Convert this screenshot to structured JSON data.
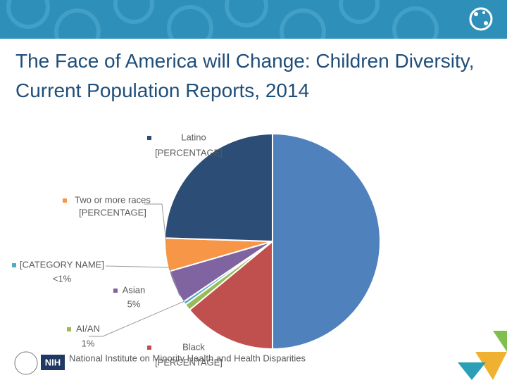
{
  "chart_data": {
    "type": "pie",
    "title": "The Face of America will Change: Children Diversity, Current Population Reports, 2014",
    "categories": [
      null,
      "Black",
      "AI/AN",
      "[CATEGORY NAME]",
      "Asian",
      "Two or more races",
      "Latino"
    ],
    "values": [
      50,
      14,
      1,
      0.5,
      5,
      5,
      24.5
    ],
    "value_labels": [
      null,
      "[PERCENTAGE]",
      "1%",
      "<1%",
      "5%",
      "[PERCENTAGE]",
      "[PERCENTAGE]"
    ],
    "colors": [
      "#4f81bd",
      "#c0504d",
      "#9bbb59",
      "#4bacc6",
      "#8064a2",
      "#f79646",
      "#2c4d75"
    ]
  },
  "footer": {
    "logo": "NIH",
    "organization": "National Institute on Minority Health and Health Disparities"
  }
}
